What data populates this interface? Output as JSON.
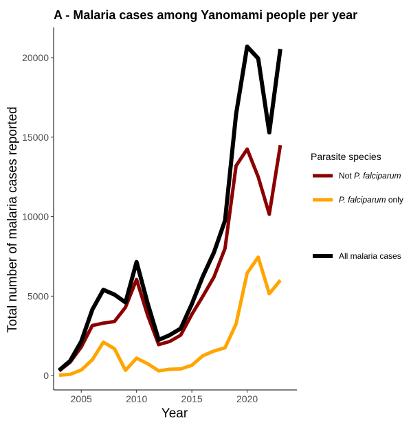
{
  "chart_data": {
    "type": "line",
    "title": "A - Malaria cases among Yanomami people per year",
    "xlabel": "Year",
    "ylabel": "Total number of malaria cases reported",
    "x": [
      2003,
      2004,
      2005,
      2006,
      2007,
      2008,
      2009,
      2010,
      2011,
      2012,
      2013,
      2014,
      2015,
      2016,
      2017,
      2018,
      2019,
      2020,
      2021,
      2022,
      2023
    ],
    "xlim": [
      2002.5,
      2024.5
    ],
    "ylim": [
      -900,
      21900
    ],
    "xticks": [
      2005,
      2010,
      2015,
      2020
    ],
    "yticks": [
      0,
      5000,
      10000,
      15000,
      20000
    ],
    "grid": false,
    "legend_title": "Parasite species",
    "legend_position": "right",
    "series": [
      {
        "name_parts": [
          "Not ",
          "P. falciparum",
          ""
        ],
        "color": "#8b0000",
        "values": [
          300,
          850,
          1800,
          3150,
          3300,
          3400,
          4300,
          6050,
          3800,
          1950,
          2150,
          2550,
          3850,
          5000,
          6200,
          8000,
          13200,
          14250,
          12500,
          10150,
          14500
        ]
      },
      {
        "name_parts": [
          "",
          "P. falciparum",
          " only"
        ],
        "color": "#ffa500",
        "values": [
          30,
          80,
          350,
          1000,
          2100,
          1700,
          330,
          1100,
          750,
          300,
          400,
          420,
          650,
          1250,
          1550,
          1750,
          3250,
          6450,
          7450,
          5150,
          6000
        ]
      },
      {
        "name_parts": [
          "All malaria cases",
          "",
          ""
        ],
        "color": "#000000",
        "values": [
          330,
          930,
          2150,
          4150,
          5400,
          5100,
          4600,
          7150,
          4550,
          2250,
          2550,
          2970,
          4500,
          6250,
          7750,
          9750,
          16450,
          20700,
          19950,
          15300,
          20550
        ]
      }
    ]
  }
}
